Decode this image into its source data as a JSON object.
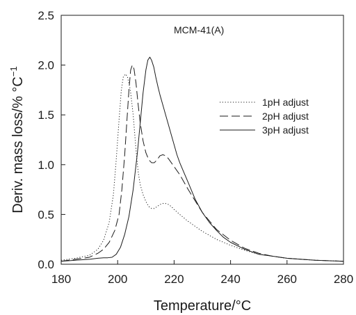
{
  "chart_data": {
    "type": "line",
    "title": "",
    "annotation": "MCM-41(A)",
    "xlabel": "Temperature/°C",
    "ylabel": "Deriv. mass loss/% °C",
    "ylabel_superscript": "−1",
    "xlim": [
      180,
      280
    ],
    "ylim": [
      0,
      2.5
    ],
    "xticks": [
      180,
      200,
      220,
      240,
      260,
      280
    ],
    "yticks": [
      0.0,
      0.5,
      1.0,
      1.5,
      2.0,
      2.5
    ],
    "ytick_labels": [
      "0.0",
      "0.5",
      "1.0",
      "1.5",
      "2.0",
      "2.5"
    ],
    "grid": false,
    "legend_position": "top-right",
    "series": [
      {
        "name": "1pH adjust",
        "style": "dotted",
        "x": [
          180,
          185,
          190,
          193,
          195,
          197,
          198.5,
          199.5,
          200.5,
          201.3,
          202,
          202.8,
          203.5,
          204.5,
          205.5,
          206.5,
          207.3,
          208,
          209,
          210,
          211,
          212,
          213,
          214,
          215,
          216,
          217,
          218,
          219,
          220,
          222,
          225,
          230,
          235,
          240,
          245,
          250,
          255,
          260,
          265,
          270,
          275,
          280
        ],
        "y": [
          0.04,
          0.06,
          0.09,
          0.15,
          0.24,
          0.42,
          0.7,
          1.05,
          1.45,
          1.75,
          1.88,
          1.91,
          1.88,
          1.75,
          1.5,
          1.15,
          0.92,
          0.8,
          0.7,
          0.63,
          0.58,
          0.56,
          0.56,
          0.58,
          0.6,
          0.61,
          0.61,
          0.6,
          0.58,
          0.55,
          0.5,
          0.43,
          0.33,
          0.25,
          0.19,
          0.14,
          0.1,
          0.08,
          0.06,
          0.05,
          0.04,
          0.035,
          0.03
        ]
      },
      {
        "name": "2pH adjust",
        "style": "dashed",
        "x": [
          180,
          185,
          190,
          193,
          195,
          197,
          199,
          200.5,
          201.5,
          202.5,
          203.3,
          204,
          204.6,
          205.2,
          205.8,
          206.5,
          207.2,
          208,
          209,
          210,
          211,
          212,
          213,
          214,
          215,
          216,
          217,
          218,
          219,
          220,
          222,
          225,
          230,
          235,
          240,
          245,
          250,
          255,
          260,
          265,
          270,
          275,
          280
        ],
        "y": [
          0.03,
          0.05,
          0.07,
          0.11,
          0.15,
          0.22,
          0.34,
          0.5,
          0.75,
          1.1,
          1.45,
          1.75,
          1.95,
          2.0,
          1.96,
          1.82,
          1.62,
          1.42,
          1.24,
          1.12,
          1.05,
          1.02,
          1.02,
          1.05,
          1.09,
          1.1,
          1.09,
          1.06,
          1.02,
          0.98,
          0.9,
          0.75,
          0.52,
          0.35,
          0.24,
          0.16,
          0.11,
          0.08,
          0.06,
          0.05,
          0.04,
          0.035,
          0.03
        ]
      },
      {
        "name": "3pH adjust",
        "style": "solid",
        "x": [
          180,
          185,
          190,
          193,
          195,
          196.5,
          198,
          199.5,
          201,
          202.5,
          204,
          205.5,
          207,
          208,
          209,
          210,
          210.7,
          211.4,
          212,
          212.8,
          213.5,
          214.3,
          215,
          216,
          217,
          218,
          219,
          220,
          221,
          222,
          223.5,
          225,
          227.5,
          230,
          232.5,
          235,
          237.5,
          240,
          245,
          250,
          255,
          260,
          265,
          270,
          275,
          280
        ],
        "y": [
          0.03,
          0.04,
          0.05,
          0.06,
          0.065,
          0.065,
          0.07,
          0.1,
          0.17,
          0.3,
          0.48,
          0.75,
          1.12,
          1.42,
          1.72,
          1.95,
          2.05,
          2.08,
          2.05,
          1.98,
          1.88,
          1.78,
          1.7,
          1.6,
          1.5,
          1.4,
          1.3,
          1.2,
          1.1,
          1.02,
          0.92,
          0.82,
          0.65,
          0.52,
          0.42,
          0.34,
          0.27,
          0.22,
          0.15,
          0.1,
          0.08,
          0.06,
          0.05,
          0.04,
          0.035,
          0.03
        ]
      }
    ]
  }
}
